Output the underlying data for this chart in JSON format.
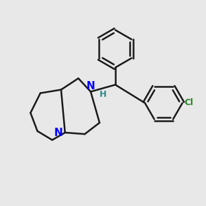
{
  "background_color": "#e8e8e8",
  "bond_color": "#1a1a1a",
  "n_color": "#0000ff",
  "h_color": "#2e8b8b",
  "cl_color": "#228822",
  "bond_width": 1.8,
  "figsize": [
    3.0,
    3.0
  ],
  "dpi": 100,
  "xlim": [
    -1.5,
    2.6
  ],
  "ylim": [
    -1.6,
    2.3
  ]
}
